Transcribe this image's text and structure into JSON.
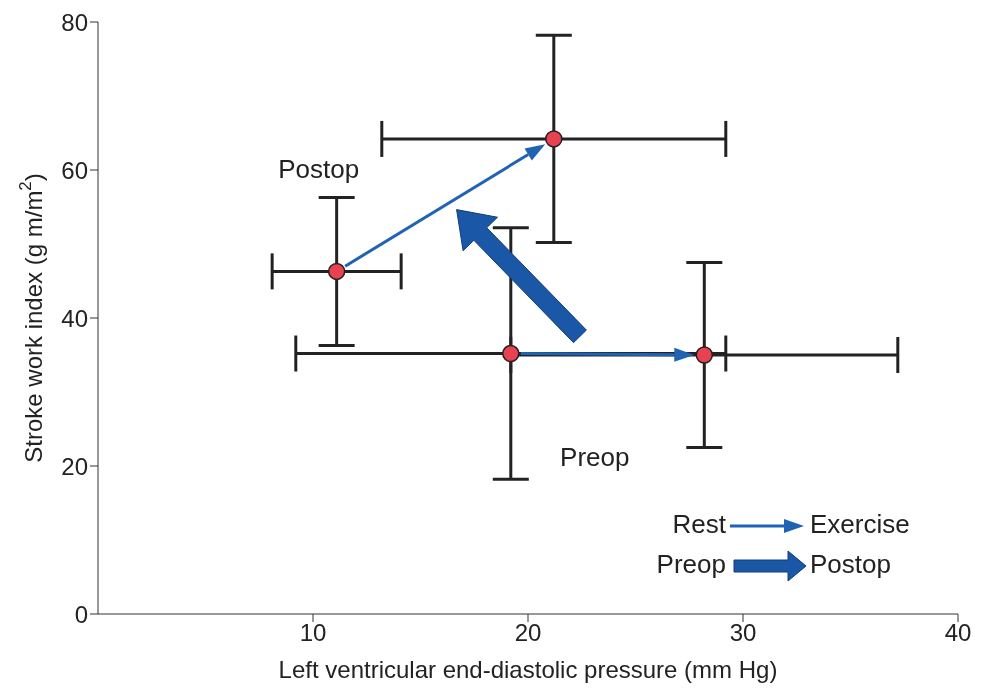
{
  "chart_data": {
    "type": "scatter",
    "xlabel": "Left ventricular end-diastolic pressure (mm Hg)",
    "ylabel": "Stroke work index (g m/m$^{2}$)",
    "x": [
      11.1,
      21.2,
      19.2,
      28.2
    ],
    "values": [
      46.3,
      64.2,
      35.2,
      35.0
    ],
    "errors": [
      10,
      14,
      17,
      12.5
    ],
    "xerrors": [
      3,
      8,
      10,
      9
    ],
    "color": "#e8414f",
    "marker": "circle",
    "xlim": [
      0,
      40
    ],
    "ylim": [
      0,
      80
    ],
    "xticks": [
      10,
      20,
      30,
      40
    ],
    "yticks": [
      0,
      20,
      40,
      60,
      80
    ],
    "annotations": [
      "Postop",
      "Preop",
      "Rest",
      "Exercise",
      "Preop",
      "Postop"
    ]
  }
}
